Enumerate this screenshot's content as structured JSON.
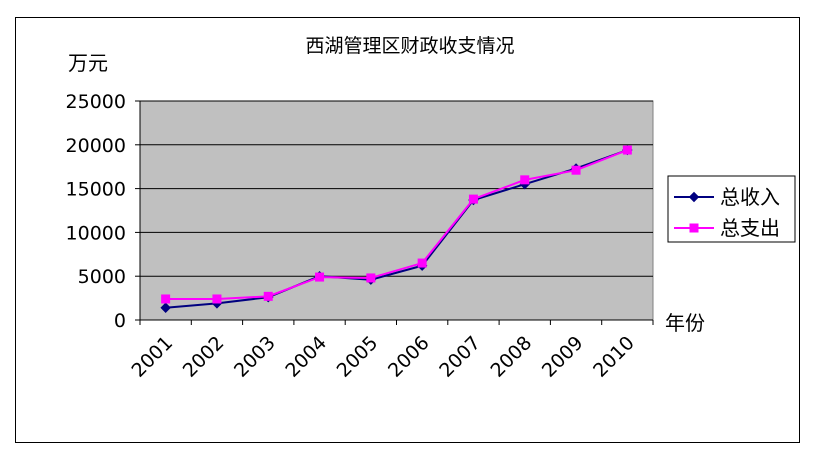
{
  "chart_data": {
    "type": "line",
    "title": "西湖管理区财政收支情况",
    "ylabel": "万元",
    "xlabel": "年份",
    "categories": [
      "2001",
      "2002",
      "2003",
      "2004",
      "2005",
      "2006",
      "2007",
      "2008",
      "2009",
      "2010"
    ],
    "ylim": [
      0,
      25000
    ],
    "yticks": [
      0,
      5000,
      10000,
      15000,
      20000,
      25000
    ],
    "grid": true,
    "legend_position": "right",
    "plot_background": "#C0C0C0",
    "series": [
      {
        "name": "总收入",
        "color": "#000080",
        "marker": "diamond",
        "values": [
          1400,
          1900,
          2600,
          5000,
          4600,
          6200,
          13700,
          15500,
          17300,
          19400
        ]
      },
      {
        "name": "总支出",
        "color": "#FF00FF",
        "marker": "square",
        "values": [
          2400,
          2400,
          2700,
          4900,
          4800,
          6500,
          13800,
          16000,
          17100,
          19400
        ]
      }
    ]
  }
}
